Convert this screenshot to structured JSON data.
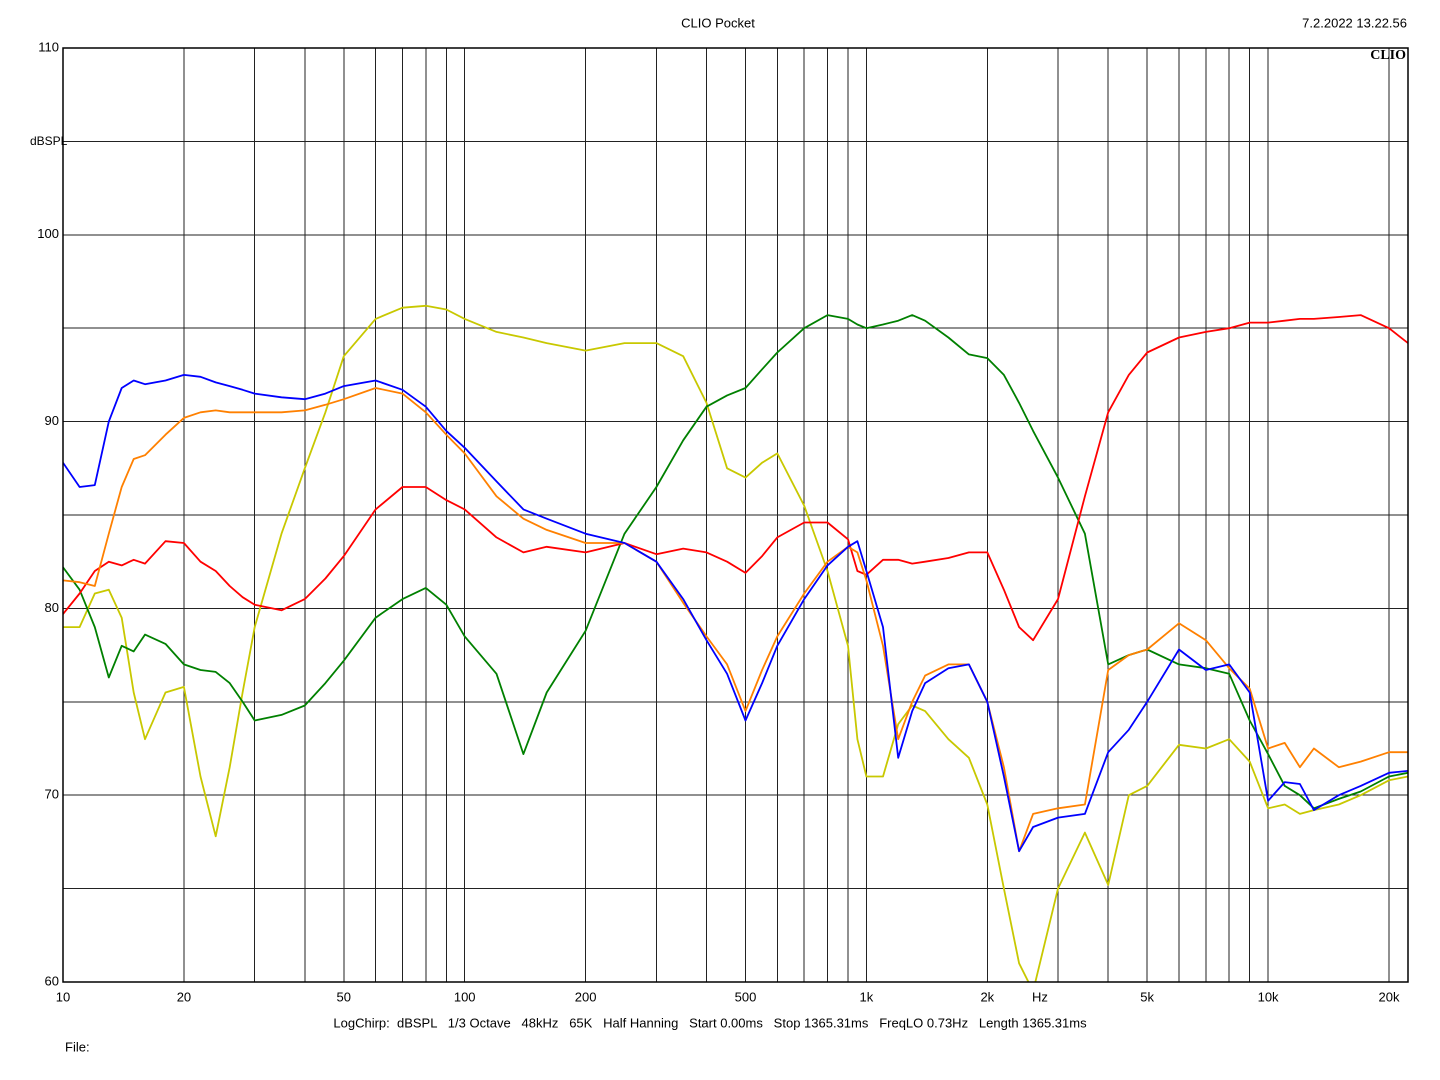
{
  "chart_data": {
    "type": "line",
    "title": "CLIO Pocket",
    "timestamp": "7.2.2022 13.22.56",
    "logo": "CLIO",
    "ylabel": "dBSPL",
    "xlabel": "Hz",
    "footer": "LogChirp:  dBSPL   1/3 Octave   48kHz   65K   Half Hanning   Start 0.00ms   Stop 1365.31ms   FreqLO 0.73Hz   Length 1365.31ms",
    "file_label": "File:",
    "xscale": "log",
    "grid": true,
    "xlim": [
      10,
      22300
    ],
    "ylim": [
      60,
      110
    ],
    "xticks": [
      10,
      20,
      50,
      100,
      200,
      500,
      {
        "value": 1000,
        "label": "1k"
      },
      {
        "value": 2000,
        "label": "2k"
      },
      {
        "value": 5000,
        "label": "5k"
      },
      {
        "value": 10000,
        "label": "10k"
      },
      {
        "value": 20000,
        "label": "20k"
      }
    ],
    "minor_xticks": [
      30,
      40,
      60,
      70,
      80,
      90,
      300,
      400,
      600,
      700,
      800,
      900,
      3000,
      4000,
      6000,
      7000,
      8000,
      9000
    ],
    "yticks": [
      60,
      70,
      80,
      90,
      100,
      110
    ],
    "minor_yticks": [
      65,
      75,
      85,
      95,
      105
    ],
    "x": [
      10,
      11,
      12,
      13,
      14,
      15,
      16,
      18,
      20,
      22,
      24,
      26,
      28,
      30,
      35,
      40,
      45,
      50,
      60,
      70,
      80,
      90,
      100,
      120,
      140,
      160,
      200,
      250,
      300,
      350,
      400,
      450,
      500,
      550,
      600,
      700,
      800,
      900,
      950,
      1000,
      1100,
      1200,
      1300,
      1400,
      1600,
      1800,
      2000,
      2200,
      2400,
      2600,
      3000,
      3500,
      4000,
      4500,
      5000,
      6000,
      7000,
      8000,
      9000,
      10000,
      11000,
      12000,
      13000,
      15000,
      17000,
      20000,
      22300
    ],
    "series": [
      {
        "color": "#c8c800",
        "values": [
          79,
          79,
          80.8,
          81,
          79.5,
          75.5,
          73,
          75.5,
          75.8,
          71,
          67.8,
          71.5,
          75.5,
          79,
          84,
          87.5,
          90.5,
          93.5,
          95.5,
          96.1,
          96.2,
          96,
          95.5,
          94.8,
          94.5,
          94.2,
          93.8,
          94.2,
          94.2,
          93.5,
          91,
          87.5,
          87,
          87.8,
          88.3,
          85.5,
          82,
          78,
          73,
          71,
          71,
          73.8,
          74.8,
          74.5,
          73,
          72,
          69.5,
          65,
          61,
          59.5,
          65,
          68,
          65.2,
          70,
          70.5,
          72.7,
          72.5,
          73,
          71.8,
          69.3,
          69.5,
          69,
          69.2,
          69.5,
          70,
          70.8,
          71
        ]
      },
      {
        "color": "#008000",
        "values": [
          82.2,
          81,
          79,
          76.3,
          78,
          77.7,
          78.6,
          78.1,
          77,
          76.7,
          76.6,
          76,
          75,
          74,
          74.3,
          74.8,
          76,
          77.2,
          79.5,
          80.5,
          81.1,
          80.2,
          78.5,
          76.5,
          72.2,
          75.5,
          78.8,
          84,
          86.5,
          89,
          90.8,
          91.4,
          91.8,
          92.8,
          93.7,
          95,
          95.7,
          95.5,
          95.2,
          95,
          95.2,
          95.4,
          95.7,
          95.4,
          94.5,
          93.6,
          93.4,
          92.5,
          91,
          89.5,
          87,
          84,
          77,
          77.5,
          77.8,
          77,
          76.8,
          76.5,
          74,
          72.2,
          70.5,
          70,
          69.3,
          69.8,
          70.2,
          71,
          71.2
        ]
      },
      {
        "color": "#ff0000",
        "values": [
          79.7,
          80.8,
          82,
          82.5,
          82.3,
          82.6,
          82.4,
          83.6,
          83.5,
          82.5,
          82,
          81.2,
          80.6,
          80.2,
          79.9,
          80.5,
          81.6,
          82.8,
          85.3,
          86.5,
          86.5,
          85.8,
          85.3,
          83.8,
          83,
          83.3,
          83,
          83.5,
          82.9,
          83.2,
          83,
          82.5,
          81.9,
          82.8,
          83.8,
          84.6,
          84.6,
          83.7,
          82,
          81.8,
          82.6,
          82.6,
          82.4,
          82.5,
          82.7,
          83,
          83,
          81,
          79,
          78.3,
          80.5,
          86,
          90.5,
          92.5,
          93.7,
          94.5,
          94.8,
          95,
          95.3,
          95.3,
          95.4,
          95.5,
          95.5,
          95.6,
          95.7,
          95,
          94.2
        ]
      },
      {
        "color": "#ff8000",
        "values": [
          81.5,
          81.4,
          81.2,
          84,
          86.5,
          88,
          88.2,
          89.3,
          90.2,
          90.5,
          90.6,
          90.5,
          90.5,
          90.5,
          90.5,
          90.6,
          90.9,
          91.2,
          91.8,
          91.5,
          90.5,
          89.3,
          88.3,
          86,
          84.8,
          84.2,
          83.5,
          83.5,
          82.5,
          80.3,
          78.5,
          77,
          74.5,
          76.7,
          78.5,
          80.8,
          82.5,
          83.3,
          83,
          81.5,
          78,
          73,
          75,
          76.4,
          77,
          77,
          75,
          71.5,
          67,
          69,
          69.3,
          69.5,
          76.7,
          77.5,
          77.8,
          79.2,
          78.3,
          76.8,
          75.7,
          72.5,
          72.8,
          71.5,
          72.5,
          71.5,
          71.8,
          72.3,
          72.3
        ]
      },
      {
        "color": "#0000ff",
        "values": [
          87.8,
          86.5,
          86.6,
          90,
          91.8,
          92.2,
          92,
          92.2,
          92.5,
          92.4,
          92.1,
          91.9,
          91.7,
          91.5,
          91.3,
          91.2,
          91.5,
          91.9,
          92.2,
          91.7,
          90.8,
          89.5,
          88.6,
          86.8,
          85.3,
          84.8,
          84,
          83.5,
          82.5,
          80.5,
          78.3,
          76.5,
          74,
          76,
          78,
          80.5,
          82.3,
          83.3,
          83.6,
          82,
          79,
          72,
          74.5,
          76,
          76.8,
          77,
          75,
          71,
          67,
          68.3,
          68.8,
          69,
          72.3,
          73.5,
          75,
          77.8,
          76.7,
          77,
          75.5,
          69.7,
          70.7,
          70.6,
          69.2,
          70,
          70.5,
          71.2,
          71.3
        ]
      }
    ]
  }
}
